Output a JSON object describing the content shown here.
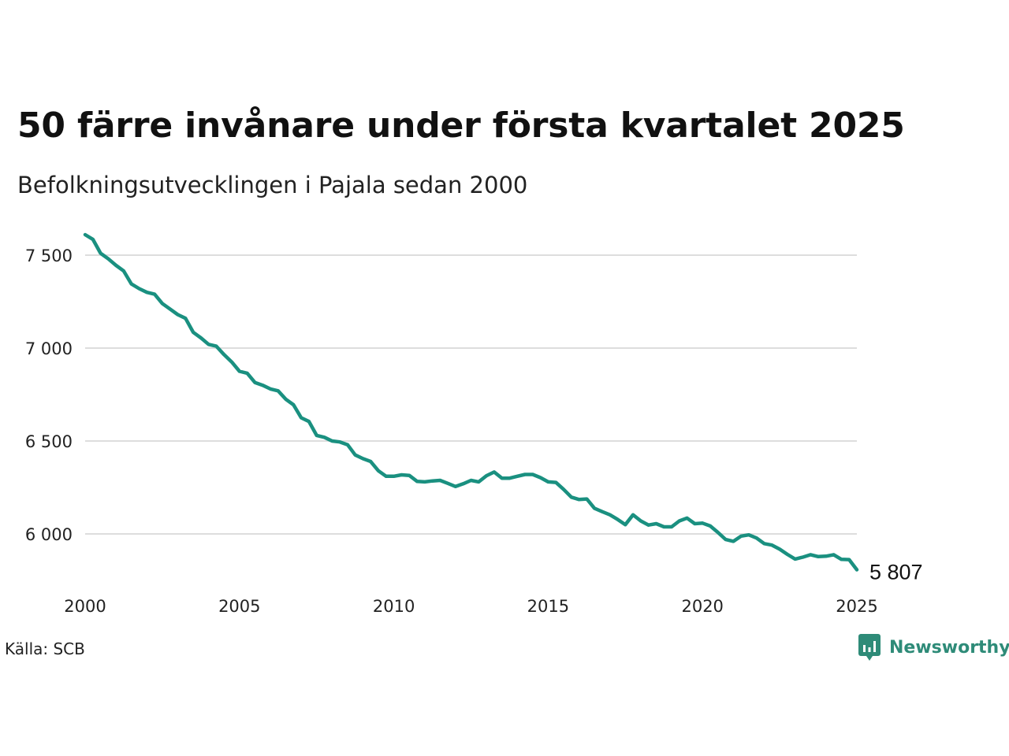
{
  "title": "50 färre invånare under första kvartalet 2025",
  "subtitle": "Befolkningsutvecklingen i Pajala sedan 2000",
  "source": "Källa: SCB",
  "brand": {
    "name": "Newsworthy",
    "icon": "newsworthy-logo-icon",
    "color": "#2e8b78"
  },
  "colors": {
    "line": "#1a9080",
    "grid": "#dddddd"
  },
  "chart_data": {
    "type": "line",
    "title": "50 färre invånare under första kvartalet 2025",
    "subtitle": "Befolkningsutvecklingen i Pajala sedan 2000",
    "xlabel": "",
    "ylabel": "",
    "grid": "horizontal",
    "xlim": [
      2000,
      2025
    ],
    "ylim": [
      5750,
      7650
    ],
    "x_ticks": [
      2000,
      2005,
      2010,
      2015,
      2020,
      2025
    ],
    "x_tick_labels": [
      "2000",
      "2005",
      "2010",
      "2015",
      "2020",
      "2025"
    ],
    "y_ticks": [
      6000,
      6500,
      7000,
      7500
    ],
    "y_tick_labels": [
      "6 000",
      "6 500",
      "7 000",
      "7 500"
    ],
    "last_value_label": "5 807",
    "series": [
      {
        "frequency": "quarterly",
        "start": "2000 Q1",
        "values": [
          7610,
          7585,
          7510,
          7480,
          7445,
          7415,
          7345,
          7320,
          7300,
          7290,
          7240,
          7210,
          7180,
          7160,
          7085,
          7055,
          7020,
          7010,
          6965,
          6925,
          6875,
          6865,
          6815,
          6800,
          6780,
          6770,
          6725,
          6695,
          6625,
          6605,
          6530,
          6520,
          6500,
          6495,
          6480,
          6425,
          6405,
          6390,
          6340,
          6310,
          6310,
          6318,
          6315,
          6283,
          6280,
          6285,
          6288,
          6272,
          6255,
          6270,
          6288,
          6280,
          6313,
          6333,
          6300,
          6300,
          6310,
          6320,
          6320,
          6303,
          6280,
          6277,
          6240,
          6198,
          6185,
          6188,
          6138,
          6120,
          6103,
          6078,
          6050,
          6103,
          6070,
          6048,
          6055,
          6038,
          6038,
          6070,
          6085,
          6055,
          6058,
          6043,
          6008,
          5970,
          5960,
          5988,
          5995,
          5978,
          5948,
          5940,
          5918,
          5890,
          5865,
          5875,
          5888,
          5878,
          5880,
          5888,
          5863,
          5862,
          5807
        ]
      }
    ]
  }
}
